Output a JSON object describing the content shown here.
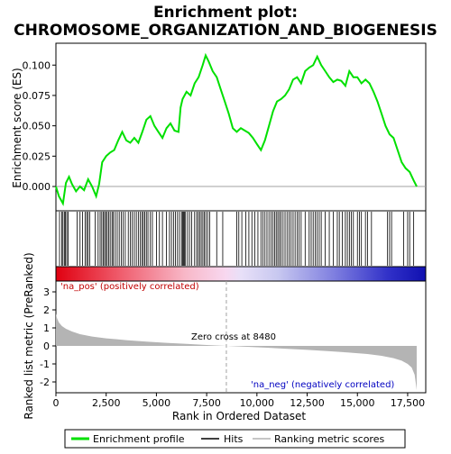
{
  "chart_data": {
    "type": "line",
    "title_line1": "Enrichment plot:",
    "title_line2": "CHROMOSOME_ORGANIZATION_AND_BIOGENESIS",
    "es_panel": {
      "ylabel": "Enrichment score (ES)",
      "ylim": [
        -0.02,
        0.118
      ],
      "yticks": [
        0.0,
        0.025,
        0.05,
        0.075,
        0.1
      ],
      "ytick_labels": [
        "0.000",
        "0.025",
        "0.050",
        "0.075",
        "0.100"
      ],
      "line_color": "#00e000",
      "x": [
        0,
        150,
        350,
        500,
        650,
        800,
        1000,
        1200,
        1400,
        1600,
        1800,
        2000,
        2150,
        2300,
        2500,
        2700,
        2900,
        3100,
        3300,
        3500,
        3700,
        3900,
        4100,
        4300,
        4500,
        4700,
        4900,
        5100,
        5300,
        5500,
        5700,
        5900,
        6100,
        6200,
        6300,
        6500,
        6700,
        6900,
        7100,
        7300,
        7450,
        7600,
        7800,
        8000,
        8200,
        8400,
        8600,
        8800,
        9000,
        9200,
        9400,
        9600,
        9800,
        10000,
        10200,
        10400,
        10600,
        10800,
        11000,
        11200,
        11400,
        11600,
        11800,
        12000,
        12200,
        12400,
        12600,
        12800,
        13000,
        13200,
        13400,
        13600,
        13800,
        14000,
        14200,
        14400,
        14600,
        14800,
        15000,
        15200,
        15400,
        15600,
        15800,
        16000,
        16200,
        16400,
        16600,
        16800,
        17000,
        17200,
        17400,
        17600,
        17800,
        17950
      ],
      "y": [
        0.0,
        -0.008,
        -0.014,
        0.003,
        0.008,
        0.002,
        -0.004,
        0.0,
        -0.003,
        0.006,
        0.0,
        -0.008,
        0.002,
        0.02,
        0.025,
        0.028,
        0.03,
        0.038,
        0.045,
        0.038,
        0.036,
        0.04,
        0.036,
        0.045,
        0.055,
        0.058,
        0.05,
        0.045,
        0.04,
        0.048,
        0.052,
        0.046,
        0.045,
        0.065,
        0.072,
        0.078,
        0.075,
        0.085,
        0.09,
        0.1,
        0.108,
        0.103,
        0.095,
        0.09,
        0.08,
        0.07,
        0.06,
        0.048,
        0.045,
        0.048,
        0.046,
        0.044,
        0.04,
        0.035,
        0.03,
        0.038,
        0.05,
        0.062,
        0.07,
        0.072,
        0.075,
        0.08,
        0.088,
        0.09,
        0.085,
        0.095,
        0.098,
        0.1,
        0.107,
        0.1,
        0.095,
        0.09,
        0.086,
        0.088,
        0.087,
        0.083,
        0.095,
        0.09,
        0.09,
        0.085,
        0.088,
        0.085,
        0.078,
        0.07,
        0.06,
        0.05,
        0.043,
        0.04,
        0.03,
        0.02,
        0.015,
        0.012,
        0.005,
        0.0
      ]
    },
    "hits": [
      180,
      290,
      350,
      420,
      470,
      540,
      610,
      1050,
      1200,
      1320,
      1450,
      1530,
      1600,
      1680,
      1950,
      2100,
      2200,
      2280,
      2350,
      2420,
      2480,
      2550,
      2620,
      2700,
      2790,
      2850,
      2950,
      3050,
      3150,
      3250,
      3350,
      3450,
      3600,
      3700,
      3800,
      3900,
      4000,
      4100,
      4200,
      4280,
      4350,
      4420,
      4500,
      4580,
      4700,
      4800,
      5000,
      5150,
      5300,
      5500,
      5650,
      5750,
      5850,
      5950,
      6050,
      6150,
      6250,
      6300,
      6350,
      6400,
      6450,
      6550,
      6650,
      6750,
      6900,
      7000,
      7080,
      7150,
      7230,
      7310,
      7380,
      7460,
      7550,
      7650,
      8000,
      8300,
      9000,
      9100,
      9250,
      9450,
      9600,
      9750,
      9900,
      10050,
      10200,
      10300,
      10400,
      10500,
      10600,
      10700,
      10800,
      10880,
      10960,
      11040,
      11120,
      11200,
      11300,
      11400,
      11500,
      11600,
      11700,
      11800,
      11900,
      12000,
      12100,
      12200,
      12400,
      12600,
      12700,
      12800,
      12900,
      13000,
      13100,
      13200,
      13400,
      13600,
      13800,
      14000,
      14100,
      14250,
      14400,
      14500,
      14600,
      14700,
      14800,
      15000,
      15100,
      15200,
      15400,
      15500,
      15700,
      16500,
      16600,
      16700,
      17300,
      17500,
      17600,
      17800
    ],
    "ranked_panel": {
      "ylabel": "Ranked list metric (PreRanked)",
      "ylim": [
        -2.6,
        3.6
      ],
      "yticks": [
        3,
        2,
        1,
        0,
        -1,
        -2
      ],
      "ytick_labels": [
        "3",
        "2",
        "1",
        "0",
        "-1",
        "-2"
      ],
      "x": [
        0,
        50,
        150,
        300,
        500,
        800,
        1200,
        1800,
        2500,
        3500,
        4500,
        5500,
        6500,
        7500,
        8480,
        9500,
        10500,
        11500,
        12500,
        13500,
        14500,
        15500,
        16200,
        16800,
        17200,
        17500,
        17700,
        17850,
        17950
      ],
      "y": [
        1.8,
        1.55,
        1.3,
        1.1,
        0.95,
        0.8,
        0.65,
        0.52,
        0.42,
        0.32,
        0.24,
        0.17,
        0.11,
        0.05,
        0.0,
        -0.05,
        -0.1,
        -0.16,
        -0.22,
        -0.29,
        -0.36,
        -0.45,
        -0.55,
        -0.68,
        -0.82,
        -1.0,
        -1.2,
        -1.6,
        -2.45
      ],
      "zero_cross_label": "Zero cross at 8480",
      "zero_cross_x": 8480,
      "pos_label": "'na_pos' (positively correlated)",
      "neg_label": "'na_neg' (negatively correlated)",
      "fill_color": "#b4b4b4"
    },
    "xlabel": "Rank in Ordered Dataset",
    "xlim": [
      0,
      18400
    ],
    "xticks": [
      0,
      2500,
      5000,
      7500,
      10000,
      12500,
      15000,
      17500
    ],
    "xtick_labels": [
      "0",
      "2,500",
      "5,000",
      "7,500",
      "10,000",
      "12,500",
      "15,000",
      "17,500"
    ],
    "legend": {
      "placement": "bottom",
      "items": [
        {
          "label": "Enrichment profile",
          "color": "#00e000",
          "style": "thick-line"
        },
        {
          "label": "Hits",
          "color": "#000000",
          "style": "line"
        },
        {
          "label": "Ranking metric scores",
          "color": "#b4b4b4",
          "style": "line"
        }
      ]
    },
    "colors": {
      "positive": "#e8001c",
      "negative": "#1010c0",
      "pos_text": "#c00000",
      "neg_text": "#0000c0",
      "zero_line": "#a0a0a0"
    }
  }
}
